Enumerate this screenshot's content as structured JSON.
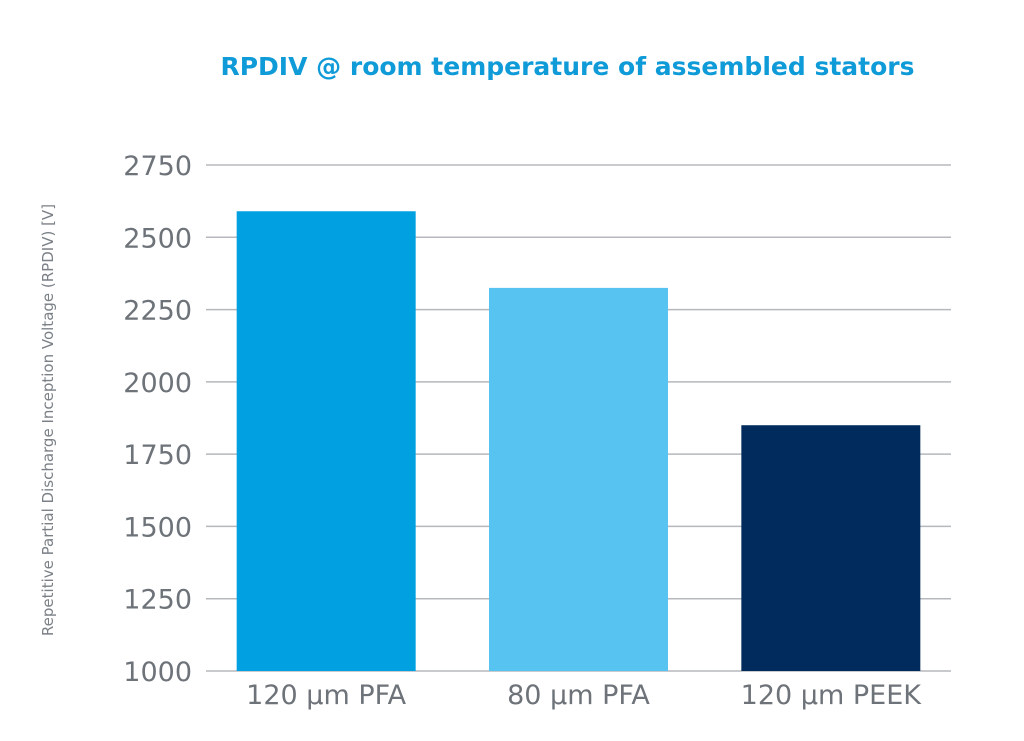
{
  "chart_data": {
    "type": "bar",
    "title": "RPDIV @ room temperature of assembled stators",
    "xlabel": "",
    "ylabel": "Repetitive Partial Discharge Inception Voltage (RPDIV) [V]",
    "ylim": [
      1000,
      2750
    ],
    "yticks": [
      "1000",
      "1250",
      "1500",
      "1750",
      "2000",
      "2250",
      "2500",
      "2750"
    ],
    "grid": true,
    "categories": [
      "120 µm PFA",
      "80 µm PFA",
      "120 µm PEEK"
    ],
    "values": [
      2590,
      2325,
      1850
    ],
    "colors": [
      "#00a0e1",
      "#56c3f0",
      "#002b5c"
    ]
  }
}
